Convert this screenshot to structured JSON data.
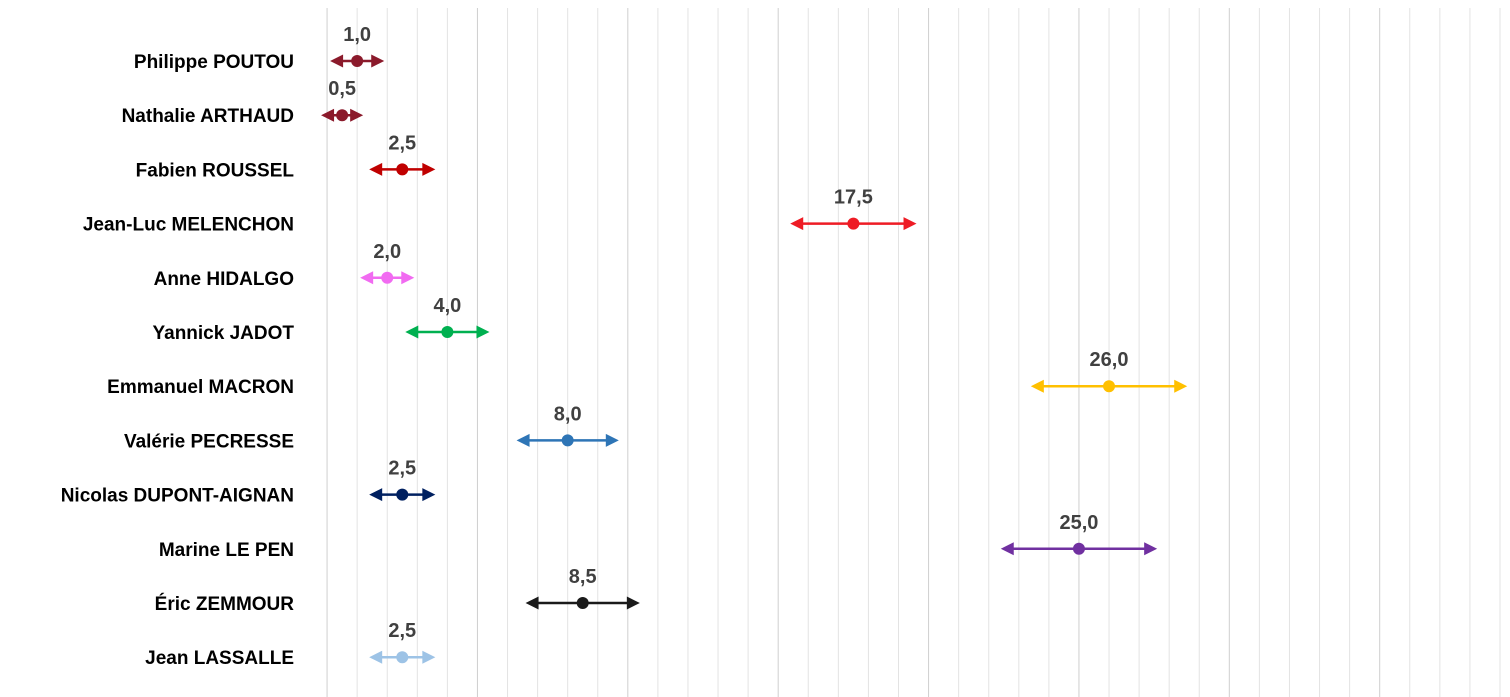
{
  "chart_data": {
    "type": "scatter",
    "orientation": "horizontal",
    "error_bars": true,
    "xlim": [
      -1,
      39
    ],
    "grid_step": 1,
    "major_grid_step": 5,
    "grid": true,
    "legend": "none",
    "title": "",
    "xlabel": "",
    "ylabel": "",
    "categories": [
      "Philippe POUTOU",
      "Nathalie ARTHAUD",
      "Fabien ROUSSEL",
      "Jean-Luc MELENCHON",
      "Anne HIDALGO",
      "Yannick JADOT",
      "Emmanuel MACRON",
      "Valérie PECRESSE",
      "Nicolas DUPONT-AIGNAN",
      "Marine LE PEN",
      "Éric ZEMMOUR",
      "Jean LASSALLE"
    ],
    "points": [
      {
        "value": 1.0,
        "low": 0.1,
        "high": 1.9,
        "label": "1,0",
        "color": "#8B1A2B"
      },
      {
        "value": 0.5,
        "low": -0.2,
        "high": 1.2,
        "label": "0,5",
        "color": "#8B1A2B"
      },
      {
        "value": 2.5,
        "low": 1.4,
        "high": 3.6,
        "label": "2,5",
        "color": "#C00000"
      },
      {
        "value": 17.5,
        "low": 15.4,
        "high": 19.6,
        "label": "17,5",
        "color": "#EE1C25"
      },
      {
        "value": 2.0,
        "low": 1.1,
        "high": 2.9,
        "label": "2,0",
        "color": "#F16BF1"
      },
      {
        "value": 4.0,
        "low": 2.6,
        "high": 5.4,
        "label": "4,0",
        "color": "#00B050"
      },
      {
        "value": 26.0,
        "low": 23.4,
        "high": 28.6,
        "label": "26,0",
        "color": "#FFC000"
      },
      {
        "value": 8.0,
        "low": 6.3,
        "high": 9.7,
        "label": "8,0",
        "color": "#2E75B6"
      },
      {
        "value": 2.5,
        "low": 1.4,
        "high": 3.6,
        "label": "2,5",
        "color": "#002060"
      },
      {
        "value": 25.0,
        "low": 22.4,
        "high": 27.6,
        "label": "25,0",
        "color": "#7030A0"
      },
      {
        "value": 8.5,
        "low": 6.6,
        "high": 10.4,
        "label": "8,5",
        "color": "#1A1A1A"
      },
      {
        "value": 2.5,
        "low": 1.4,
        "high": 3.6,
        "label": "2,5",
        "color": "#9DC3E6"
      }
    ],
    "colors": {
      "grid_minor": "#e3e3e3",
      "grid_major": "#cfcfcf",
      "label_text": "#404040"
    }
  }
}
